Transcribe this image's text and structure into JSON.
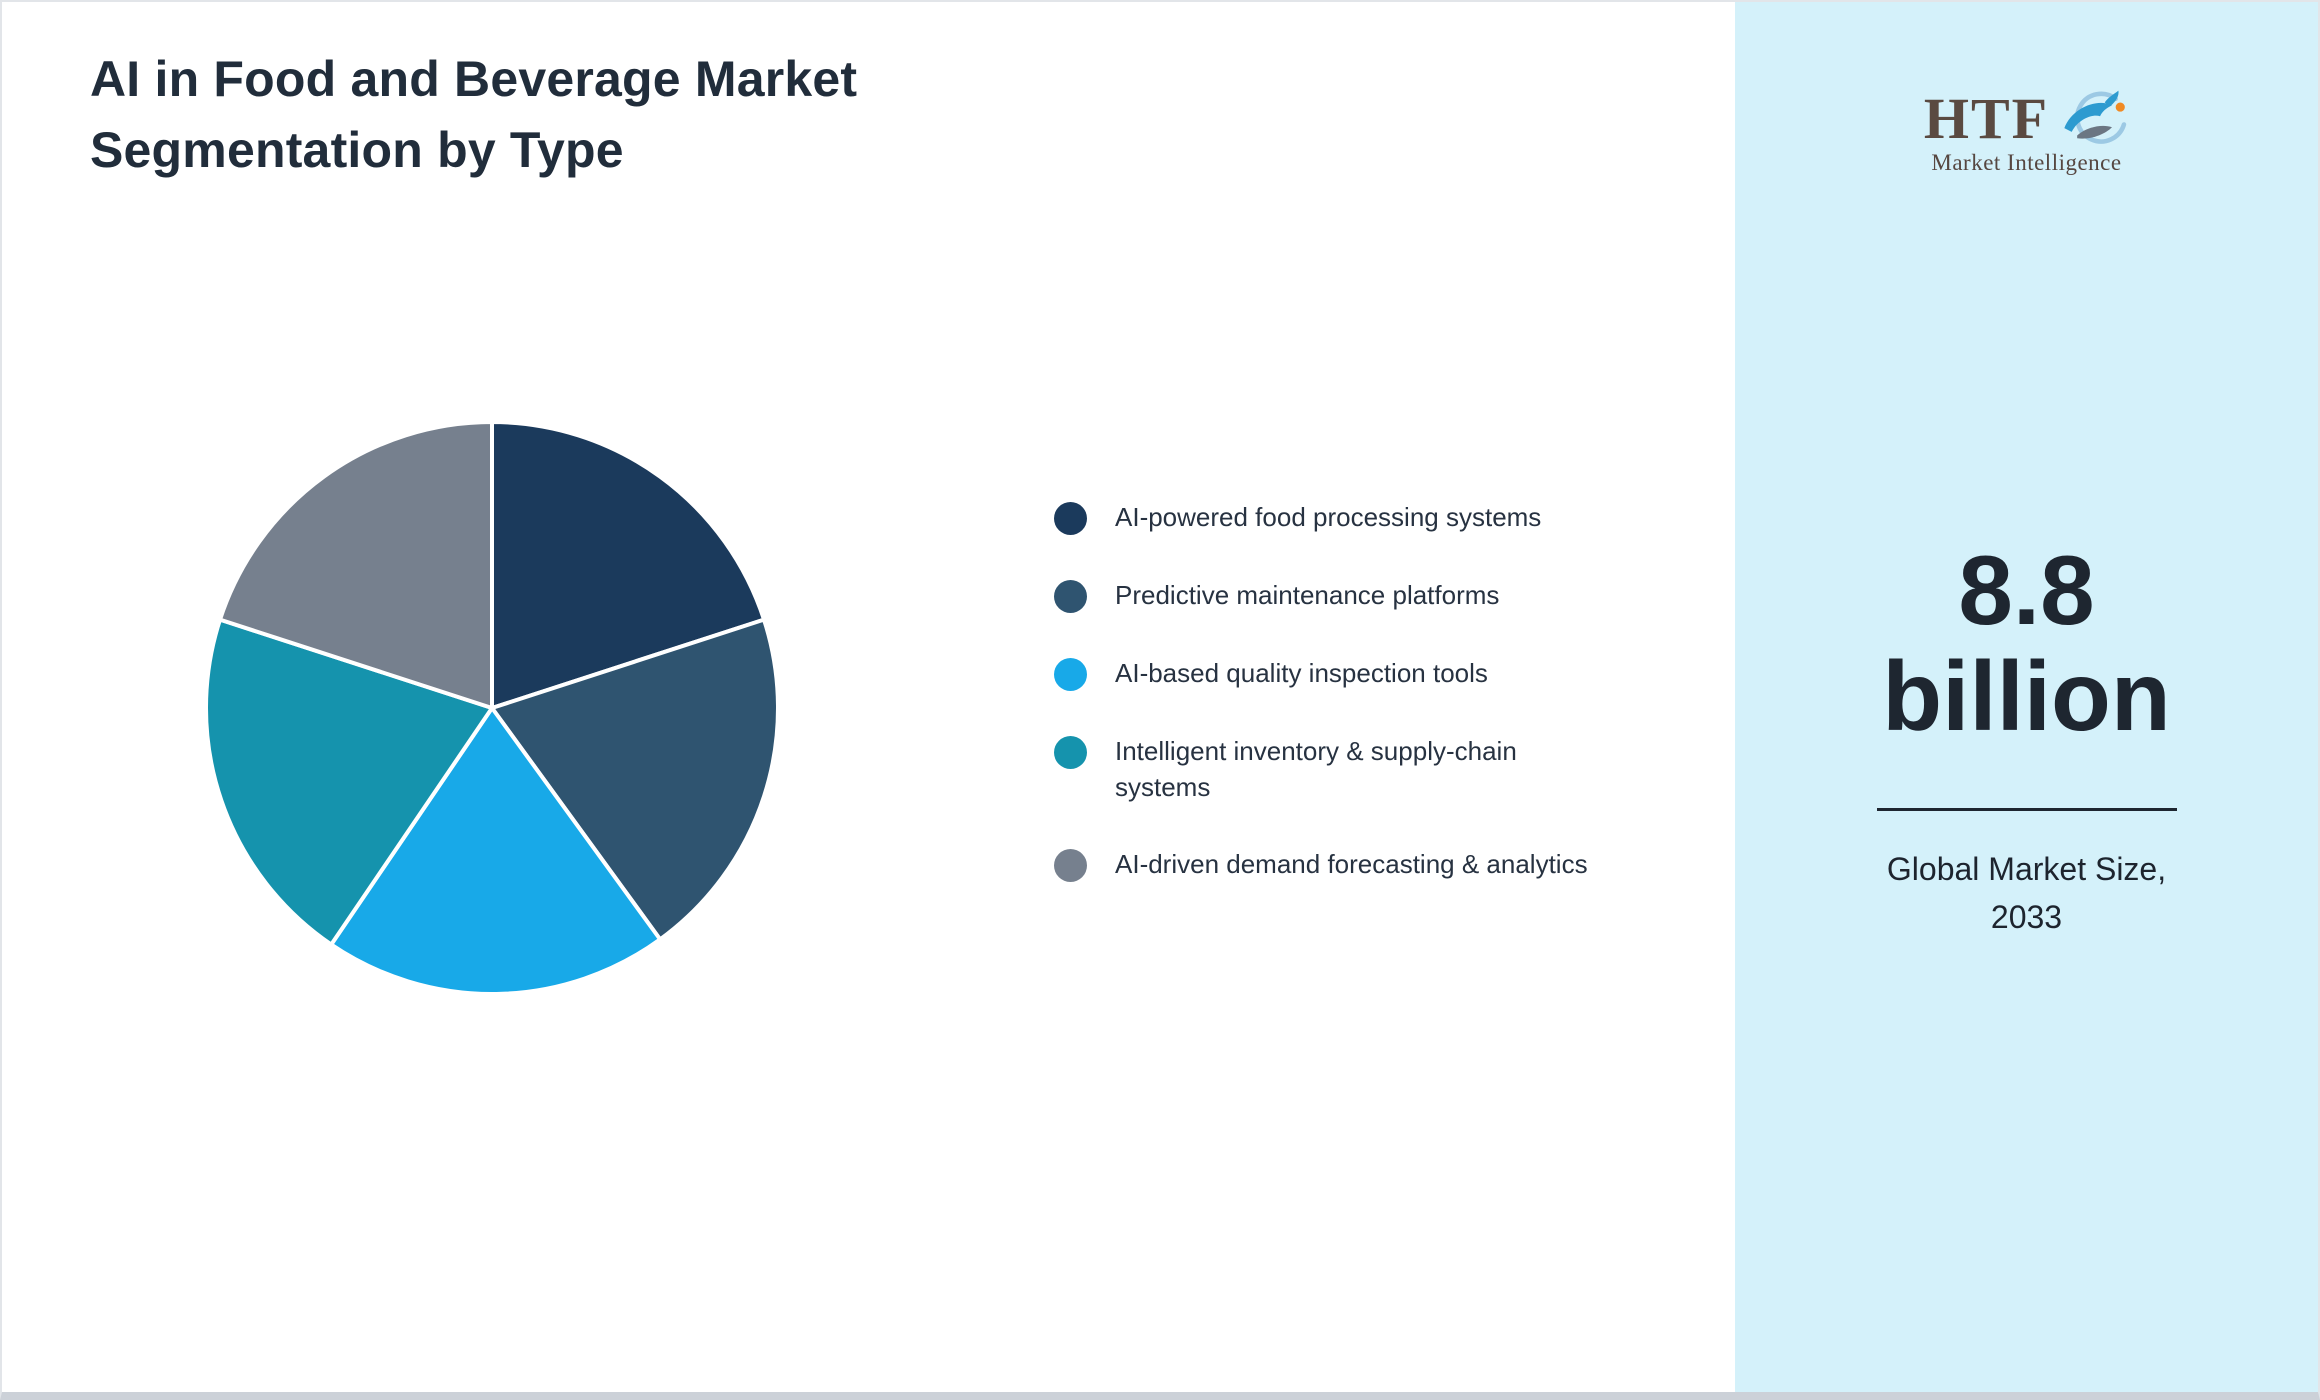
{
  "title": "AI in Food and Beverage Market Segmentation by Type",
  "chart_data": {
    "type": "pie",
    "title": "AI in Food and Beverage Market Segmentation by Type",
    "legend_position": "right",
    "start_angle_deg": -90,
    "direction": "clockwise",
    "segments": [
      {
        "label": "AI-powered food processing systems",
        "value": 20,
        "color": "#1b3a5c"
      },
      {
        "label": "Predictive maintenance platforms",
        "value": 20,
        "color": "#2f5470"
      },
      {
        "label": "AI-based quality inspection tools",
        "value": 19.5,
        "color": "#18a9e8"
      },
      {
        "label": "Intelligent inventory & supply-chain systems",
        "value": 20.5,
        "color": "#1593ad"
      },
      {
        "label": "AI-driven demand forecasting & analytics",
        "value": 20,
        "color": "#76808e"
      }
    ]
  },
  "sidebar": {
    "logo": {
      "text": "HTF",
      "subtext": "Market Intelligence"
    },
    "market_size_value": "8.8",
    "market_size_unit": "billion",
    "caption_line1": "Global Market Size,",
    "caption_line2": "2033",
    "background_color": "#d4f1fa"
  },
  "colors": {
    "title_text": "#212d3b",
    "legend_text": "#273241",
    "sidebar_background": "#d4f1fa",
    "pie_slice_stroke": "#ffffff"
  }
}
